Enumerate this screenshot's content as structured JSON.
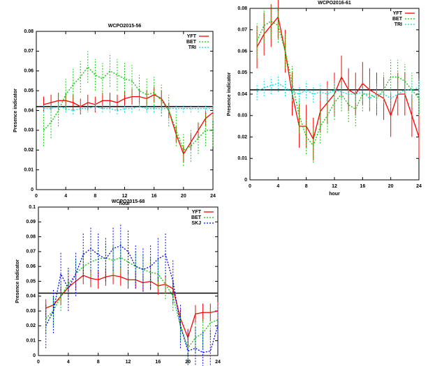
{
  "chart_data": [
    {
      "type": "line",
      "title": "WCPO2015-56",
      "xlabel": "hour",
      "ylabel": "Presence indicator",
      "x": [
        1,
        2,
        3,
        4,
        5,
        6,
        7,
        8,
        9,
        10,
        11,
        12,
        13,
        14,
        15,
        16,
        17,
        18,
        19,
        20,
        21,
        22,
        23,
        24
      ],
      "xlim": [
        0,
        24
      ],
      "xticks": [
        0,
        4,
        8,
        12,
        16,
        20,
        24
      ],
      "ylim": [
        0,
        0.08
      ],
      "yticks": [
        0,
        0.01,
        0.02,
        0.03,
        0.04,
        0.05,
        0.06,
        0.07,
        0.08
      ],
      "hline": 0.042,
      "legend": "upper right",
      "series": [
        {
          "name": "YFT",
          "color": "#ff0000",
          "line_style": "solid",
          "values": [
            0.043,
            0.044,
            0.045,
            0.045,
            0.044,
            0.042,
            0.044,
            0.043,
            0.045,
            0.045,
            0.044,
            0.046,
            0.047,
            0.047,
            0.046,
            0.048,
            0.046,
            0.04,
            0.028,
            0.018,
            0.024,
            0.03,
            0.036,
            0.039
          ],
          "errors": [
            0.004,
            0.004,
            0.004,
            0.004,
            0.004,
            0.004,
            0.004,
            0.004,
            0.004,
            0.004,
            0.004,
            0.004,
            0.004,
            0.004,
            0.004,
            0.004,
            0.004,
            0.004,
            0.004,
            0.004,
            0.004,
            0.004,
            0.004,
            0.004
          ]
        },
        {
          "name": "BET",
          "color": "#00cc00",
          "line_style": "dashed",
          "values": [
            0.03,
            0.034,
            0.04,
            0.048,
            0.053,
            0.057,
            0.062,
            0.058,
            0.056,
            0.06,
            0.058,
            0.056,
            0.055,
            0.05,
            0.048,
            0.049,
            0.045,
            0.04,
            0.03,
            0.02,
            0.022,
            0.026,
            0.03,
            0.03
          ],
          "errors": [
            0.008,
            0.008,
            0.008,
            0.008,
            0.008,
            0.008,
            0.008,
            0.008,
            0.008,
            0.008,
            0.008,
            0.008,
            0.008,
            0.008,
            0.008,
            0.008,
            0.008,
            0.008,
            0.008,
            0.008,
            0.008,
            0.008,
            0.008,
            0.008
          ]
        },
        {
          "name": "TRI",
          "color": "#00dddd",
          "line_style": "dashed",
          "values": [
            0.041,
            0.041,
            0.042,
            0.041,
            0.04,
            0.041,
            0.041,
            0.042,
            0.041,
            0.041,
            0.04,
            0.041,
            0.041,
            0.042,
            0.041,
            0.041,
            0.041,
            0.041,
            0.041,
            0.041,
            0.041,
            0.041,
            0.041,
            0.041
          ],
          "errors": [
            0.002,
            0.002,
            0.002,
            0.002,
            0.002,
            0.002,
            0.002,
            0.002,
            0.002,
            0.002,
            0.002,
            0.002,
            0.002,
            0.002,
            0.002,
            0.002,
            0.002,
            0.002,
            0.002,
            0.002,
            0.002,
            0.002,
            0.002,
            0.002
          ]
        }
      ]
    },
    {
      "type": "line",
      "title": "WCPO2016-61",
      "xlabel": "hour",
      "ylabel": "Presence indicator",
      "x": [
        1,
        2,
        3,
        4,
        5,
        6,
        7,
        8,
        9,
        10,
        11,
        12,
        13,
        14,
        15,
        16,
        17,
        18,
        19,
        20,
        21,
        22,
        23,
        24
      ],
      "xlim": [
        0,
        24
      ],
      "xticks": [
        0,
        4,
        8,
        12,
        16,
        20,
        24
      ],
      "ylim": [
        0,
        0.08
      ],
      "yticks": [
        0,
        0.01,
        0.02,
        0.03,
        0.04,
        0.05,
        0.06,
        0.07,
        0.08
      ],
      "hline": 0.042,
      "legend": "upper right",
      "series": [
        {
          "name": "YFT",
          "color": "#ff0000",
          "line_style": "solid",
          "values": [
            0.062,
            0.068,
            0.072,
            0.076,
            0.06,
            0.04,
            0.025,
            0.025,
            0.019,
            0.032,
            0.036,
            0.04,
            0.048,
            0.042,
            0.04,
            0.045,
            0.042,
            0.04,
            0.038,
            0.03,
            0.04,
            0.04,
            0.03,
            0.02
          ],
          "errors": [
            0.01,
            0.01,
            0.01,
            0.01,
            0.01,
            0.01,
            0.01,
            0.01,
            0.01,
            0.01,
            0.01,
            0.01,
            0.01,
            0.01,
            0.01,
            0.01,
            0.01,
            0.01,
            0.01,
            0.01,
            0.01,
            0.01,
            0.01,
            0.01
          ]
        },
        {
          "name": "BET",
          "color": "#00cc00",
          "line_style": "dashed",
          "values": [
            0.065,
            0.072,
            0.074,
            0.072,
            0.06,
            0.045,
            0.03,
            0.02,
            0.016,
            0.025,
            0.03,
            0.036,
            0.04,
            0.035,
            0.033,
            0.04,
            0.04,
            0.038,
            0.042,
            0.048,
            0.048,
            0.046,
            0.042,
            0.038
          ],
          "errors": [
            0.008,
            0.008,
            0.008,
            0.008,
            0.008,
            0.008,
            0.008,
            0.008,
            0.008,
            0.008,
            0.008,
            0.008,
            0.008,
            0.008,
            0.008,
            0.008,
            0.008,
            0.008,
            0.008,
            0.008,
            0.008,
            0.008,
            0.008,
            0.008
          ]
        },
        {
          "name": "TRI",
          "color": "#00dddd",
          "line_style": "dashed",
          "values": [
            0.041,
            0.043,
            0.044,
            0.045,
            0.043,
            0.041,
            0.04,
            0.042,
            0.04,
            0.041,
            0.04,
            0.042,
            0.041,
            0.04,
            0.04,
            0.041,
            0.038,
            0.04,
            0.04,
            0.038,
            0.04,
            0.042,
            0.042,
            0.043
          ],
          "errors": [
            0.004,
            0.004,
            0.004,
            0.004,
            0.004,
            0.004,
            0.004,
            0.004,
            0.004,
            0.004,
            0.004,
            0.004,
            0.004,
            0.004,
            0.004,
            0.004,
            0.004,
            0.004,
            0.004,
            0.004,
            0.004,
            0.004,
            0.004,
            0.004
          ]
        }
      ]
    },
    {
      "type": "line",
      "title": "WCPO2015-68",
      "xlabel": "hour",
      "ylabel": "Presence indicator",
      "x": [
        1,
        2,
        3,
        4,
        5,
        6,
        7,
        8,
        9,
        10,
        11,
        12,
        13,
        14,
        15,
        16,
        17,
        18,
        19,
        20,
        21,
        22,
        23,
        24
      ],
      "xlim": [
        0,
        24
      ],
      "xticks": [
        0,
        4,
        8,
        12,
        16,
        20,
        24
      ],
      "ylim": [
        0,
        0.1
      ],
      "yticks": [
        0,
        0.01,
        0.02,
        0.03,
        0.04,
        0.05,
        0.06,
        0.07,
        0.08,
        0.09,
        0.1
      ],
      "hline": 0.042,
      "legend": "upper right",
      "series": [
        {
          "name": "YFT",
          "color": "#ff0000",
          "line_style": "solid",
          "values": [
            0.032,
            0.034,
            0.04,
            0.046,
            0.05,
            0.054,
            0.052,
            0.051,
            0.053,
            0.054,
            0.053,
            0.051,
            0.051,
            0.049,
            0.05,
            0.047,
            0.048,
            0.045,
            0.025,
            0.012,
            0.028,
            0.029,
            0.029,
            0.03
          ],
          "errors": [
            0.006,
            0.006,
            0.006,
            0.006,
            0.006,
            0.006,
            0.006,
            0.006,
            0.006,
            0.006,
            0.006,
            0.006,
            0.006,
            0.006,
            0.006,
            0.006,
            0.006,
            0.006,
            0.006,
            0.006,
            0.006,
            0.006,
            0.006,
            0.006
          ]
        },
        {
          "name": "BET",
          "color": "#00cc00",
          "line_style": "dashed",
          "values": [
            0.025,
            0.03,
            0.04,
            0.048,
            0.055,
            0.06,
            0.063,
            0.065,
            0.066,
            0.064,
            0.066,
            0.063,
            0.06,
            0.058,
            0.056,
            0.055,
            0.048,
            0.04,
            0.02,
            0.005,
            0.012,
            0.015,
            0.022,
            0.024
          ],
          "errors": [
            0.01,
            0.01,
            0.01,
            0.01,
            0.01,
            0.01,
            0.01,
            0.01,
            0.01,
            0.01,
            0.01,
            0.01,
            0.01,
            0.01,
            0.01,
            0.01,
            0.01,
            0.01,
            0.01,
            0.01,
            0.01,
            0.01,
            0.01,
            0.01
          ]
        },
        {
          "name": "SKJ",
          "color": "#0000ff",
          "line_style": "dashed",
          "values": [
            0.02,
            0.03,
            0.055,
            0.045,
            0.055,
            0.068,
            0.072,
            0.068,
            0.065,
            0.072,
            0.074,
            0.07,
            0.06,
            0.058,
            0.06,
            0.065,
            0.068,
            0.05,
            0.02,
            0.003,
            0.005,
            0.002,
            0.003,
            0.02
          ],
          "errors": [
            0.015,
            0.015,
            0.015,
            0.015,
            0.015,
            0.015,
            0.015,
            0.015,
            0.015,
            0.015,
            0.015,
            0.015,
            0.015,
            0.015,
            0.015,
            0.015,
            0.015,
            0.015,
            0.015,
            0.015,
            0.015,
            0.015,
            0.015,
            0.015
          ]
        }
      ]
    }
  ]
}
